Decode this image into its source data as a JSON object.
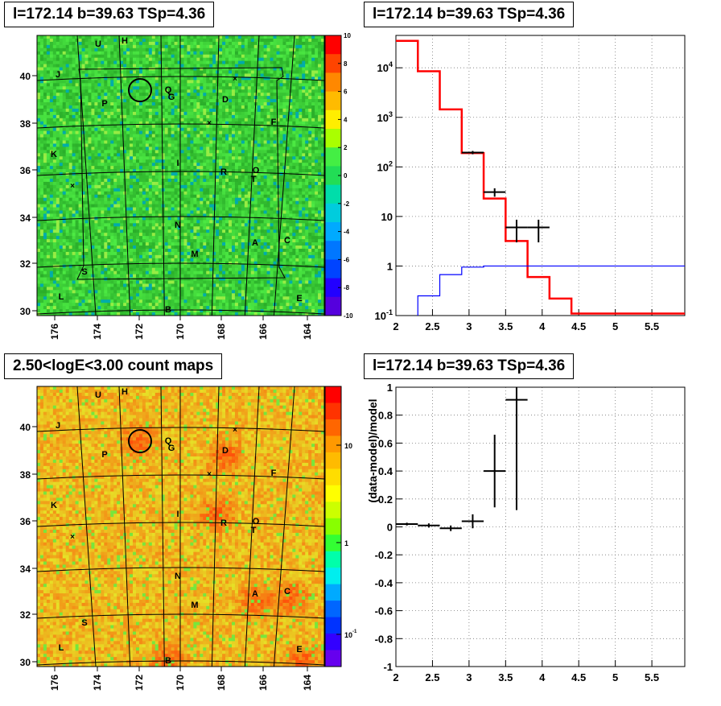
{
  "panels": {
    "tl_title": "l=172.14 b=39.63 TSp=4.36",
    "tr_title": "l=172.14 b=39.63 TSp=4.36",
    "bl_title": "2.50<logE<3.00 count maps",
    "br_title": "l=172.14 b=39.63 TSp=4.36"
  },
  "colors": {
    "model": "#ff0000",
    "background": "#0000ff",
    "data": "#000000",
    "sky_map_top": "#22dd33",
    "sky_map_bottom": "#ffcc22"
  },
  "chart_data": [
    {
      "type": "heatmap",
      "title": "l=172.14 b=39.63 TSp=4.36",
      "x_ticks": [
        "176",
        "174",
        "172",
        "170",
        "168",
        "166",
        "164"
      ],
      "y_ticks": [
        "40",
        "38",
        "36",
        "34",
        "32",
        "30"
      ],
      "colorbar_ticks": [
        "10",
        "8",
        "6",
        "4",
        "2",
        "0",
        "-2",
        "-4",
        "-6",
        "-8",
        "-10"
      ],
      "colorbar_range": [
        -10,
        10
      ],
      "source_labels": [
        "U",
        "H",
        "J",
        "Q",
        "G",
        "P",
        "D",
        "F",
        "K",
        "I",
        "R",
        "O",
        "T",
        "N",
        "A",
        "C",
        "M",
        "S",
        "L",
        "B",
        "E"
      ]
    },
    {
      "type": "line",
      "title": "l=172.14 b=39.63 TSp=4.36",
      "yscale": "log",
      "x_ticks": [
        "2",
        "2.5",
        "3",
        "3.5",
        "4",
        "4.5",
        "5",
        "5.5"
      ],
      "y_ticks": [
        "10^4",
        "10^3",
        "10^2",
        "10",
        "1",
        "10^-1"
      ],
      "xlim": [
        2.0,
        5.95
      ],
      "ylim": [
        0.1,
        45000
      ],
      "series": [
        {
          "role": "model",
          "bins": [
            [
              2.0,
              2.3
            ],
            [
              2.3,
              2.6
            ],
            [
              2.6,
              2.9
            ],
            [
              2.9,
              3.2
            ],
            [
              3.2,
              3.5
            ],
            [
              3.5,
              3.8
            ],
            [
              3.8,
              4.1
            ],
            [
              4.1,
              4.4
            ],
            [
              4.4,
              5.95
            ]
          ],
          "values": [
            35000,
            8500,
            1450,
            190,
            23,
            3.2,
            0.6,
            0.22,
            0.11
          ]
        },
        {
          "role": "background",
          "bins": [
            [
              2.3,
              2.6
            ],
            [
              2.6,
              2.9
            ],
            [
              2.9,
              3.2
            ],
            [
              3.2,
              5.95
            ]
          ],
          "values": [
            0.25,
            0.67,
            0.95,
            1.0
          ]
        },
        {
          "role": "data",
          "x": [
            3.05,
            3.35,
            3.65,
            3.95
          ],
          "xerr": [
            0.15,
            0.15,
            0.15,
            0.15
          ],
          "y": [
            195,
            31,
            6,
            6
          ],
          "yerr_low": [
            15,
            6,
            3,
            3
          ],
          "yerr_high": [
            15,
            6,
            2.6,
            2.6
          ]
        }
      ]
    },
    {
      "type": "heatmap",
      "title": "2.50<logE<3.00 count maps",
      "x_ticks": [
        "176",
        "174",
        "172",
        "170",
        "168",
        "166",
        "164"
      ],
      "y_ticks": [
        "40",
        "38",
        "36",
        "34",
        "32",
        "30"
      ],
      "colorbar_scale": "log",
      "colorbar_ticks": [
        "10",
        "1",
        "10^-1"
      ],
      "source_labels": [
        "U",
        "H",
        "J",
        "Q",
        "G",
        "P",
        "D",
        "F",
        "K",
        "I",
        "R",
        "O",
        "T",
        "N",
        "A",
        "C",
        "M",
        "S",
        "L",
        "B",
        "E"
      ]
    },
    {
      "type": "scatter",
      "title": "l=172.14 b=39.63 TSp=4.36",
      "ylabel": "(data-model)/model",
      "x_ticks": [
        "2",
        "2.5",
        "3",
        "3.5",
        "4",
        "4.5",
        "5",
        "5.5"
      ],
      "y_ticks": [
        "1",
        "0.8",
        "0.6",
        "0.4",
        "0.2",
        "0",
        "-0.2",
        "-0.4",
        "-0.6",
        "-0.8",
        "-1"
      ],
      "xlim": [
        2.0,
        5.95
      ],
      "ylim": [
        -1,
        1
      ],
      "x": [
        2.15,
        2.45,
        2.75,
        3.05,
        3.35,
        3.65
      ],
      "xerr": [
        0.15,
        0.15,
        0.15,
        0.15,
        0.15,
        0.15
      ],
      "y": [
        0.02,
        0.01,
        -0.01,
        0.04,
        0.4,
        0.91
      ],
      "yerr": [
        0.01,
        0.015,
        0.02,
        0.05,
        0.26,
        0.79
      ]
    }
  ]
}
